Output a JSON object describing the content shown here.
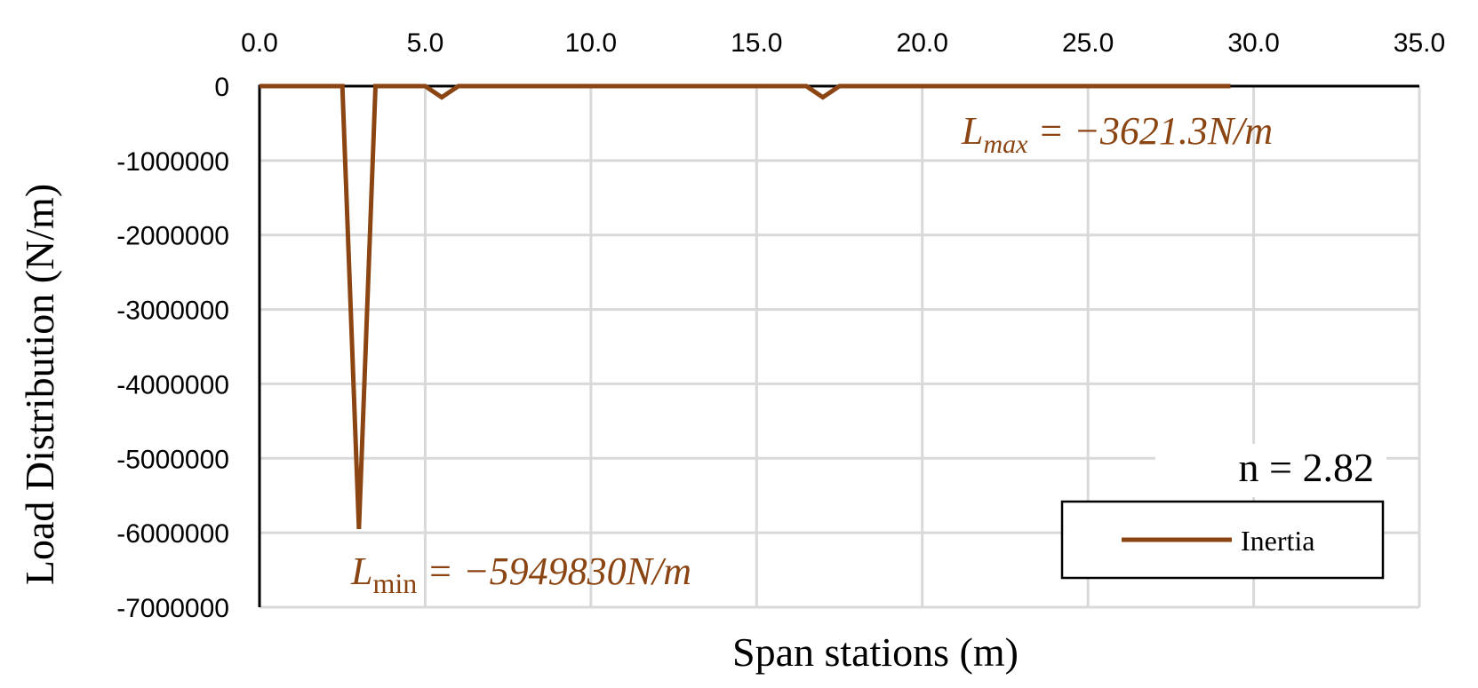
{
  "chart_data": {
    "type": "line",
    "xlabel": "Span stations (m)",
    "ylabel": "Load  Distribution (N/m)",
    "xlim": [
      0,
      35
    ],
    "ylim": [
      -7000000,
      0
    ],
    "x_ticks": [
      "0.0",
      "5.0",
      "10.0",
      "15.0",
      "20.0",
      "25.0",
      "30.0",
      "35.0"
    ],
    "y_ticks": [
      "0",
      "-1000000",
      "-2000000",
      "-3000000",
      "-4000000",
      "-5000000",
      "-6000000",
      "-7000000"
    ],
    "x_tick_values": [
      0,
      5,
      10,
      15,
      20,
      25,
      30,
      35
    ],
    "y_tick_values": [
      0,
      -1000000,
      -2000000,
      -3000000,
      -4000000,
      -5000000,
      -6000000,
      -7000000
    ],
    "x_axis_position": "top",
    "grid": true,
    "legend_position": "bottom-right",
    "series": [
      {
        "name": "Inertia",
        "color": "#8b4513",
        "x": [
          0.0,
          2.5,
          3.0,
          3.5,
          5.0,
          5.5,
          6.0,
          16.5,
          17.0,
          17.5,
          29.3
        ],
        "y": [
          0,
          0,
          -5949830,
          0,
          0,
          -150000,
          0,
          0,
          -150000,
          0,
          0
        ]
      }
    ],
    "annotations": {
      "max_base": "L",
      "max_sub": "max",
      "max_rest": " = −3621.3N/m",
      "min_base": "L",
      "min_sub": "min",
      "min_rest": " = −5949830N/m",
      "n_label": "n = 2.82"
    }
  }
}
